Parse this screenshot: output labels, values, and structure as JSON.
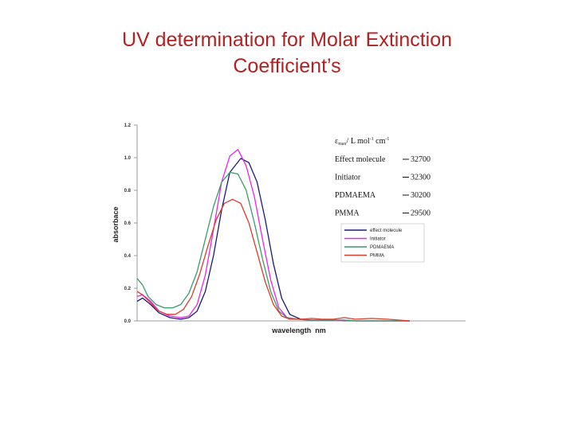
{
  "slide": {
    "title_line1": "UV determination for Molar Extinction",
    "title_line2": "Coefficient’s"
  },
  "chart_data": {
    "type": "line",
    "title": "",
    "xlabel": "wavelength  nm",
    "ylabel": "absorbace",
    "ylim": [
      0,
      1.2
    ],
    "yticks": [
      "0.0",
      "0.2",
      "0.4",
      "0.6",
      "0.8",
      "1.0",
      "1.2"
    ],
    "xlim": [
      0,
      100
    ],
    "grid": false,
    "legend_position": "right",
    "annotation": {
      "header_symbol": "ε",
      "header_sub": "max",
      "header_unit": "/ L mol",
      "header_exp1": "-1",
      "header_unit2": " cm",
      "header_exp2": "-1",
      "rows": [
        {
          "name": "Effect molecule",
          "value": "32700"
        },
        {
          "name": "Initiator",
          "value": "32300"
        },
        {
          "name": "PDMAEMA",
          "value": "30200"
        },
        {
          "name": "PMMA",
          "value": "29500"
        }
      ]
    },
    "series": [
      {
        "name": "effect molecule",
        "color": "#1a1a7a",
        "x": [
          0,
          2,
          5,
          8,
          12,
          16,
          19,
          22,
          25,
          28,
          31,
          34,
          38,
          41,
          44,
          47,
          50,
          53,
          56,
          60,
          64,
          68,
          72,
          76,
          80,
          86,
          92,
          100
        ],
        "y": [
          0.12,
          0.14,
          0.1,
          0.05,
          0.02,
          0.01,
          0.02,
          0.06,
          0.18,
          0.4,
          0.68,
          0.91,
          0.995,
          0.97,
          0.85,
          0.62,
          0.35,
          0.14,
          0.04,
          0.01,
          0.005,
          0.005,
          0.005,
          0.005,
          0.0,
          0.0,
          0.0,
          0.0
        ]
      },
      {
        "name": "Initiator",
        "color": "#ee22ee",
        "x": [
          0,
          2,
          5,
          8,
          12,
          16,
          19,
          22,
          25,
          28,
          31,
          34,
          37,
          40,
          43,
          46,
          49,
          52,
          55,
          59,
          63,
          68,
          72,
          76,
          80,
          86,
          92,
          100
        ],
        "y": [
          0.15,
          0.16,
          0.12,
          0.06,
          0.03,
          0.02,
          0.03,
          0.1,
          0.28,
          0.56,
          0.85,
          1.01,
          1.05,
          0.95,
          0.76,
          0.5,
          0.25,
          0.08,
          0.02,
          0.01,
          0.005,
          0.005,
          0.005,
          0.0,
          0.0,
          0.0,
          0.0,
          0.0
        ]
      },
      {
        "name": "PDMAEMA",
        "color": "#3a9a6a",
        "x": [
          0,
          2,
          4,
          7,
          10,
          13,
          16,
          19,
          22,
          25,
          28,
          31,
          34,
          37,
          40,
          43,
          46,
          49,
          52,
          55,
          59,
          63,
          68,
          72,
          76,
          80,
          86,
          92,
          100
        ],
        "y": [
          0.26,
          0.22,
          0.15,
          0.1,
          0.08,
          0.08,
          0.1,
          0.17,
          0.3,
          0.5,
          0.7,
          0.85,
          0.91,
          0.9,
          0.8,
          0.6,
          0.38,
          0.18,
          0.06,
          0.02,
          0.01,
          0.005,
          0.005,
          0.005,
          0.005,
          0.0,
          0.0,
          0.0,
          0.0
        ]
      },
      {
        "name": "PMMA",
        "color": "#dd3a2a",
        "x": [
          0,
          2,
          5,
          8,
          11,
          14,
          17,
          20,
          23,
          26,
          29,
          32,
          35,
          38,
          41,
          44,
          47,
          50,
          53,
          56,
          60,
          64,
          68,
          72,
          76,
          80,
          86,
          92,
          100
        ],
        "y": [
          0.18,
          0.16,
          0.11,
          0.06,
          0.04,
          0.04,
          0.07,
          0.15,
          0.29,
          0.46,
          0.62,
          0.72,
          0.745,
          0.72,
          0.6,
          0.42,
          0.24,
          0.1,
          0.03,
          0.01,
          0.01,
          0.015,
          0.01,
          0.01,
          0.02,
          0.01,
          0.015,
          0.01,
          0.0
        ]
      }
    ]
  }
}
